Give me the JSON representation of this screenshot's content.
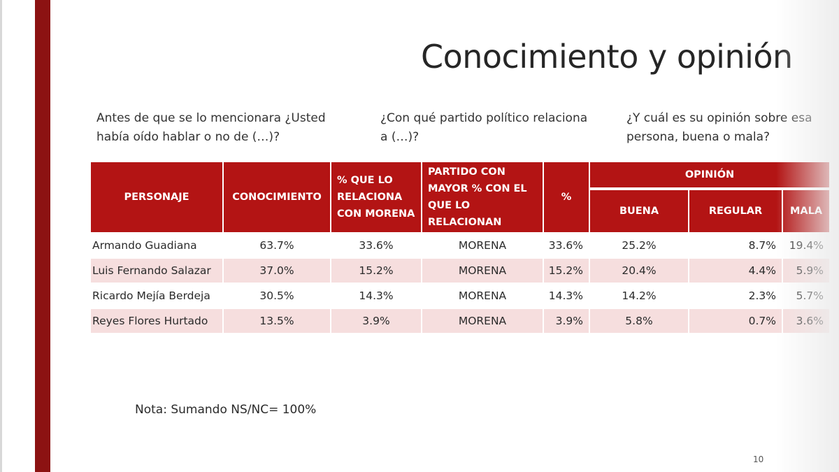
{
  "title": "Conocimiento y opinión",
  "questions": {
    "q1": "Antes de que se lo mencionara ¿Usted había oído hablar o no de (…)?",
    "q2": "¿Con qué partido político relaciona a (…)?",
    "q3": "¿Y cuál es su opinión sobre esa persona, buena o mala?"
  },
  "table": {
    "headers": {
      "personaje": "PERSONAJE",
      "conocimiento": "CONOCIMIENTO",
      "relaciona_morena": "% QUE LO RELACIONA CON MORENA",
      "partido": "PARTIDO CON MAYOR % CON EL QUE LO RELACIONAN",
      "pct": "%",
      "opinion": "OPINIÓN",
      "buena": "BUENA",
      "regular": "REGULAR",
      "mala": "MALA"
    },
    "rows": [
      {
        "name": "Armando Guadiana",
        "conocimiento": "63.7%",
        "relaciona": "33.6%",
        "partido": "MORENA",
        "pct": "33.6%",
        "buena": "25.2%",
        "regular": "8.7%",
        "mala": "19.4%"
      },
      {
        "name": "Luis Fernando Salazar",
        "conocimiento": "37.0%",
        "relaciona": "15.2%",
        "partido": "MORENA",
        "pct": "15.2%",
        "buena": "20.4%",
        "regular": "4.4%",
        "mala": "5.9%"
      },
      {
        "name": "Ricardo Mejía Berdeja",
        "conocimiento": "30.5%",
        "relaciona": "14.3%",
        "partido": "MORENA",
        "pct": "14.3%",
        "buena": "14.2%",
        "regular": "2.3%",
        "mala": "5.7%"
      },
      {
        "name": "Reyes Flores Hurtado",
        "conocimiento": "13.5%",
        "relaciona": "3.9%",
        "partido": "MORENA",
        "pct": "3.9%",
        "buena": "5.8%",
        "regular": "0.7%",
        "mala": "3.6%"
      }
    ]
  },
  "note": "Nota: Sumando NS/NC= 100%",
  "page_number": "10",
  "colors": {
    "accent_bar": "#8c1212",
    "header_red": "#b31414",
    "row_alt": "#f6dede"
  }
}
